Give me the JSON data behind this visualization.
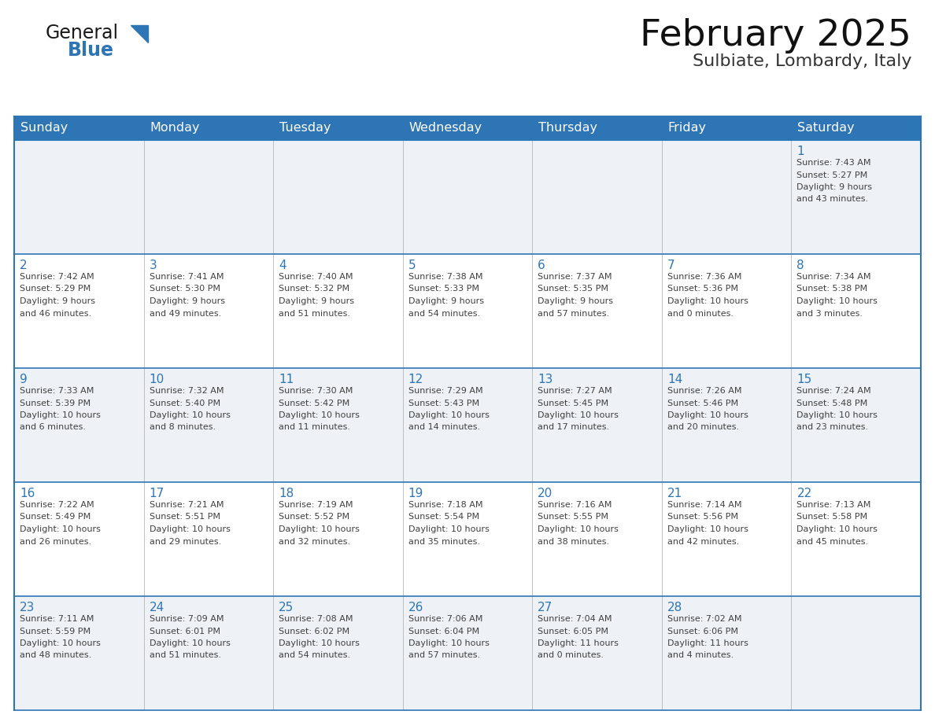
{
  "title": "February 2025",
  "subtitle": "Sulbiate, Lombardy, Italy",
  "header_bg": "#2E75B6",
  "header_text_color": "#FFFFFF",
  "day_names": [
    "Sunday",
    "Monday",
    "Tuesday",
    "Wednesday",
    "Thursday",
    "Friday",
    "Saturday"
  ],
  "bg_color": "#FFFFFF",
  "row_bg": [
    "#EEF2F7",
    "#FFFFFF",
    "#EEF2F7",
    "#FFFFFF",
    "#EEF2F7"
  ],
  "date_color": "#2E75B6",
  "text_color": "#404040",
  "line_color": "#2E75B6",
  "logo_general_color": "#1A1A1A",
  "logo_blue_color": "#2E75B6",
  "title_fontsize": 34,
  "subtitle_fontsize": 16,
  "day_name_fontsize": 11.5,
  "date_fontsize": 11,
  "cell_text_fontsize": 8.0,
  "calendar": [
    [
      null,
      null,
      null,
      null,
      null,
      null,
      {
        "day": 1,
        "sunrise": "7:43 AM",
        "sunset": "5:27 PM",
        "daylight": "9 hours and 43 minutes."
      }
    ],
    [
      {
        "day": 2,
        "sunrise": "7:42 AM",
        "sunset": "5:29 PM",
        "daylight": "9 hours and 46 minutes."
      },
      {
        "day": 3,
        "sunrise": "7:41 AM",
        "sunset": "5:30 PM",
        "daylight": "9 hours and 49 minutes."
      },
      {
        "day": 4,
        "sunrise": "7:40 AM",
        "sunset": "5:32 PM",
        "daylight": "9 hours and 51 minutes."
      },
      {
        "day": 5,
        "sunrise": "7:38 AM",
        "sunset": "5:33 PM",
        "daylight": "9 hours and 54 minutes."
      },
      {
        "day": 6,
        "sunrise": "7:37 AM",
        "sunset": "5:35 PM",
        "daylight": "9 hours and 57 minutes."
      },
      {
        "day": 7,
        "sunrise": "7:36 AM",
        "sunset": "5:36 PM",
        "daylight": "10 hours and 0 minutes."
      },
      {
        "day": 8,
        "sunrise": "7:34 AM",
        "sunset": "5:38 PM",
        "daylight": "10 hours and 3 minutes."
      }
    ],
    [
      {
        "day": 9,
        "sunrise": "7:33 AM",
        "sunset": "5:39 PM",
        "daylight": "10 hours and 6 minutes."
      },
      {
        "day": 10,
        "sunrise": "7:32 AM",
        "sunset": "5:40 PM",
        "daylight": "10 hours and 8 minutes."
      },
      {
        "day": 11,
        "sunrise": "7:30 AM",
        "sunset": "5:42 PM",
        "daylight": "10 hours and 11 minutes."
      },
      {
        "day": 12,
        "sunrise": "7:29 AM",
        "sunset": "5:43 PM",
        "daylight": "10 hours and 14 minutes."
      },
      {
        "day": 13,
        "sunrise": "7:27 AM",
        "sunset": "5:45 PM",
        "daylight": "10 hours and 17 minutes."
      },
      {
        "day": 14,
        "sunrise": "7:26 AM",
        "sunset": "5:46 PM",
        "daylight": "10 hours and 20 minutes."
      },
      {
        "day": 15,
        "sunrise": "7:24 AM",
        "sunset": "5:48 PM",
        "daylight": "10 hours and 23 minutes."
      }
    ],
    [
      {
        "day": 16,
        "sunrise": "7:22 AM",
        "sunset": "5:49 PM",
        "daylight": "10 hours and 26 minutes."
      },
      {
        "day": 17,
        "sunrise": "7:21 AM",
        "sunset": "5:51 PM",
        "daylight": "10 hours and 29 minutes."
      },
      {
        "day": 18,
        "sunrise": "7:19 AM",
        "sunset": "5:52 PM",
        "daylight": "10 hours and 32 minutes."
      },
      {
        "day": 19,
        "sunrise": "7:18 AM",
        "sunset": "5:54 PM",
        "daylight": "10 hours and 35 minutes."
      },
      {
        "day": 20,
        "sunrise": "7:16 AM",
        "sunset": "5:55 PM",
        "daylight": "10 hours and 38 minutes."
      },
      {
        "day": 21,
        "sunrise": "7:14 AM",
        "sunset": "5:56 PM",
        "daylight": "10 hours and 42 minutes."
      },
      {
        "day": 22,
        "sunrise": "7:13 AM",
        "sunset": "5:58 PM",
        "daylight": "10 hours and 45 minutes."
      }
    ],
    [
      {
        "day": 23,
        "sunrise": "7:11 AM",
        "sunset": "5:59 PM",
        "daylight": "10 hours and 48 minutes."
      },
      {
        "day": 24,
        "sunrise": "7:09 AM",
        "sunset": "6:01 PM",
        "daylight": "10 hours and 51 minutes."
      },
      {
        "day": 25,
        "sunrise": "7:08 AM",
        "sunset": "6:02 PM",
        "daylight": "10 hours and 54 minutes."
      },
      {
        "day": 26,
        "sunrise": "7:06 AM",
        "sunset": "6:04 PM",
        "daylight": "10 hours and 57 minutes."
      },
      {
        "day": 27,
        "sunrise": "7:04 AM",
        "sunset": "6:05 PM",
        "daylight": "11 hours and 0 minutes."
      },
      {
        "day": 28,
        "sunrise": "7:02 AM",
        "sunset": "6:06 PM",
        "daylight": "11 hours and 4 minutes."
      },
      null
    ]
  ]
}
